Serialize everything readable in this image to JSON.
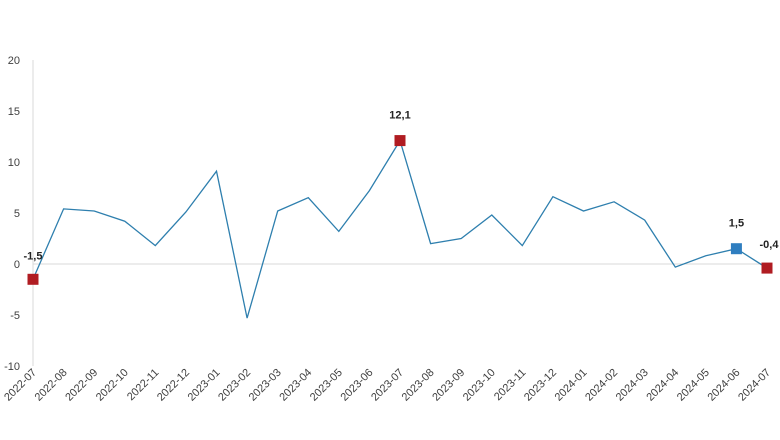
{
  "chart_data": {
    "type": "line",
    "title": "",
    "xlabel": "",
    "ylabel": "",
    "ylim": [
      -10,
      20
    ],
    "y_ticks": [
      -10,
      -5,
      0,
      5,
      10,
      15,
      20
    ],
    "y_tick_labels": [
      "-10",
      "-5",
      "0",
      "5",
      "10",
      "15",
      "20"
    ],
    "grid": false,
    "legend": "none",
    "categories": [
      "2022-07",
      "2022-08",
      "2022-09",
      "2022-10",
      "2022-11",
      "2022-12",
      "2023-01",
      "2023-02",
      "2023-03",
      "2023-04",
      "2023-05",
      "2023-06",
      "2023-07",
      "2023-08",
      "2023-09",
      "2023-10",
      "2023-11",
      "2023-12",
      "2024-01",
      "2024-02",
      "2024-03",
      "2024-04",
      "2024-05",
      "2024-06",
      "2024-07"
    ],
    "series": [
      {
        "values": [
          -1.5,
          5.4,
          5.2,
          4.2,
          1.8,
          5.1,
          9.1,
          -5.3,
          5.2,
          6.5,
          3.2,
          7.2,
          12.1,
          2.0,
          2.5,
          4.8,
          1.8,
          6.6,
          5.2,
          6.1,
          4.3,
          -0.3,
          0.8,
          1.5,
          -0.4
        ],
        "color": "#2e7fae"
      }
    ],
    "highlights": [
      {
        "category": "2022-07",
        "value": -1.5,
        "label": "-1,5",
        "color": "#b01c22"
      },
      {
        "category": "2023-07",
        "value": 12.1,
        "label": "12,1",
        "color": "#b01c22"
      },
      {
        "category": "2024-06",
        "value": 1.5,
        "label": "1,5",
        "color": "#2f7ec0"
      },
      {
        "category": "2024-07",
        "value": -0.4,
        "label": "-0,4",
        "color": "#b01c22"
      }
    ]
  }
}
